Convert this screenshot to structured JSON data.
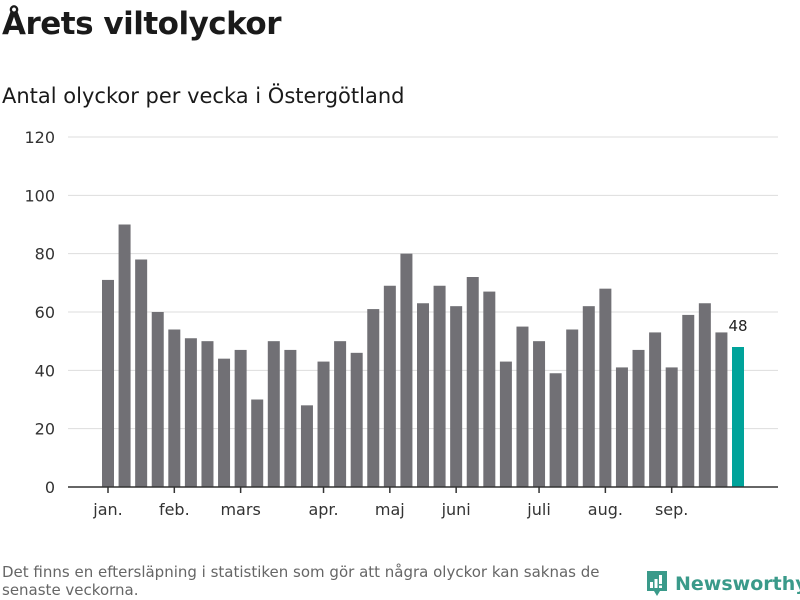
{
  "title": "Årets viltolyckor",
  "subtitle": "Antal olyckor per vecka i Östergötland",
  "footnote": "Det finns en eftersläpning i statistiken som gör att några olyckor kan saknas de senaste veckorna.",
  "brand": "Newsworthy",
  "colors": {
    "bar": "#717075",
    "highlight": "#00a39a",
    "grid": "#dddddd",
    "brand": "#3a9a8a"
  },
  "chart_data": {
    "type": "bar",
    "title": "Antal olyckor per vecka i Östergötland",
    "xlabel": "",
    "ylabel": "",
    "ylim": [
      0,
      120
    ],
    "yticks": [
      0,
      20,
      40,
      60,
      80,
      100,
      120
    ],
    "grid": true,
    "values": [
      71,
      90,
      78,
      60,
      54,
      51,
      50,
      44,
      47,
      30,
      50,
      47,
      28,
      43,
      50,
      46,
      61,
      69,
      80,
      63,
      69,
      62,
      72,
      67,
      43,
      55,
      50,
      39,
      54,
      62,
      68,
      41,
      47,
      53,
      41,
      59,
      63,
      53,
      48
    ],
    "highlight_last": true,
    "last_label": "48",
    "month_ticks": [
      {
        "label": "jan.",
        "week_index": 0
      },
      {
        "label": "feb.",
        "week_index": 4
      },
      {
        "label": "mars",
        "week_index": 8
      },
      {
        "label": "apr.",
        "week_index": 13
      },
      {
        "label": "maj",
        "week_index": 17
      },
      {
        "label": "juni",
        "week_index": 21
      },
      {
        "label": "juli",
        "week_index": 26
      },
      {
        "label": "aug.",
        "week_index": 30
      },
      {
        "label": "sep.",
        "week_index": 34
      }
    ]
  }
}
